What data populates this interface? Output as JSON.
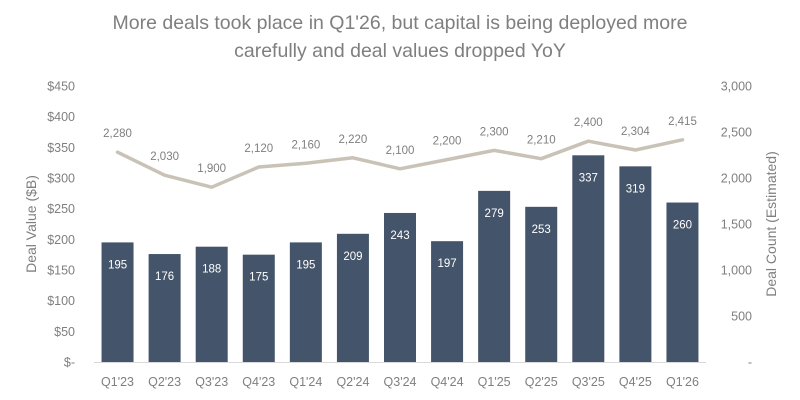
{
  "title_line1": "More deals took place in Q1'26, but capital is being deployed more",
  "title_line2": "carefully and deal values dropped YoY",
  "chart_data": {
    "type": "bar",
    "categories": [
      "Q1'23",
      "Q2'23",
      "Q3'23",
      "Q4'23",
      "Q1'24",
      "Q2'24",
      "Q3'24",
      "Q4'24",
      "Q1'25",
      "Q2'25",
      "Q3'25",
      "Q4'25",
      "Q1'26"
    ],
    "series": [
      {
        "type": "bar",
        "axis": "left",
        "color": "#44546a",
        "values": [
          195,
          176,
          188,
          175,
          195,
          209,
          243,
          197,
          279,
          253,
          337,
          319,
          260
        ]
      },
      {
        "type": "line",
        "axis": "right",
        "color": "#c9c2b6",
        "values": [
          2280,
          2030,
          1900,
          2120,
          2160,
          2220,
          2100,
          2200,
          2300,
          2210,
          2400,
          2304,
          2415
        ]
      }
    ],
    "ylabel": "Deal Value ($B)",
    "y2label": "Deal Count (Estimated)",
    "ylim": [
      0,
      450
    ],
    "y2lim": [
      0,
      3000
    ],
    "yticks": [
      "$-",
      "$50",
      "$100",
      "$150",
      "$200",
      "$250",
      "$300",
      "$350",
      "$400",
      "$450"
    ],
    "y2ticks": [
      "-",
      "500",
      "1,000",
      "1,500",
      "2,000",
      "2,500",
      "3,000"
    ],
    "bar_labels": [
      "195",
      "176",
      "188",
      "175",
      "195",
      "209",
      "243",
      "197",
      "279",
      "253",
      "337",
      "319",
      "260"
    ],
    "line_labels": [
      "2,280",
      "2,030",
      "1,900",
      "2,120",
      "2,160",
      "2,220",
      "2,100",
      "2,200",
      "2,300",
      "2,210",
      "2,400",
      "2,304",
      "2,415"
    ],
    "grid": false
  }
}
